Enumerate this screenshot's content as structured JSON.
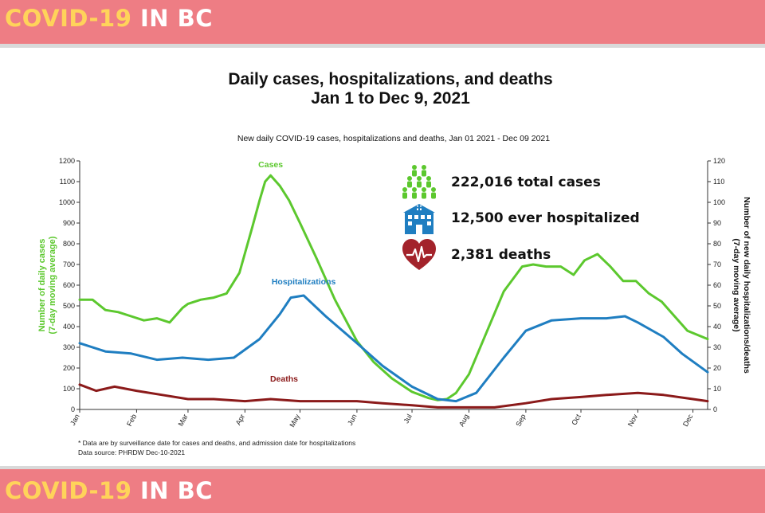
{
  "banner": {
    "part1": "COVID-19",
    "part2": "IN BC"
  },
  "title": {
    "line1": "Daily cases, hospitalizations, and deaths",
    "line2": "Jan 1 to Dec 9, 2021"
  },
  "stats": [
    {
      "icon": "people-icon",
      "text": "222,016 total cases"
    },
    {
      "icon": "hospital-icon",
      "text": "12,500 ever hospitalized"
    },
    {
      "icon": "heart-pulse-icon",
      "text": "2,381 deaths"
    }
  ],
  "footnote": {
    "line1": "* Data are by surveillance date for cases and deaths, and admission date for hospitalizations",
    "line2": "Data source: PHRDW Dec-10-2021"
  },
  "colors": {
    "banner": "#ee7d84",
    "cases": "#5cc82e",
    "hospitalizations": "#1f7ec1",
    "deaths": "#8b1a1a"
  },
  "chart_data": {
    "type": "line",
    "title": "New daily COVID-19 cases, hospitalizations and deaths, Jan 01 2021 - Dec 09 2021",
    "ylabel": "Number of daily cases (7-day moving average)",
    "ylabel2": "Number of new daily hospitalizations/deaths (7-day moving average)",
    "ylim": [
      0,
      1200
    ],
    "y2lim": [
      0,
      120
    ],
    "yticks": [
      "0",
      "100",
      "200",
      "300",
      "400",
      "500",
      "600",
      "700",
      "800",
      "900",
      "1000",
      "1100",
      "1200"
    ],
    "y2ticks": [
      "0",
      "10",
      "20",
      "30",
      "40",
      "50",
      "60",
      "70",
      "80",
      "90",
      "100",
      "110",
      "120"
    ],
    "xticks": [
      "Jan",
      "Feb",
      "Mar",
      "Apr",
      "May",
      "Jun",
      "Jul",
      "Aug",
      "Sep",
      "Oct",
      "Nov",
      "Dec"
    ],
    "xtick_dates": [
      "2021-01-01",
      "2021-02-01",
      "2021-03-01",
      "2021-04-01",
      "2021-05-01",
      "2021-06-01",
      "2021-07-01",
      "2021-08-01",
      "2021-09-01",
      "2021-10-01",
      "2021-11-01",
      "2021-12-01"
    ],
    "xlim": [
      "2021-01-01",
      "2021-12-09"
    ],
    "grid": false,
    "series": [
      {
        "name": "Cases",
        "axis": "left",
        "x": [
          "2021-01-01",
          "2021-01-08",
          "2021-01-15",
          "2021-01-22",
          "2021-01-29",
          "2021-02-05",
          "2021-02-12",
          "2021-02-19",
          "2021-02-26",
          "2021-03-01",
          "2021-03-08",
          "2021-03-15",
          "2021-03-22",
          "2021-03-29",
          "2021-04-05",
          "2021-04-09",
          "2021-04-12",
          "2021-04-15",
          "2021-04-20",
          "2021-04-25",
          "2021-05-01",
          "2021-05-10",
          "2021-05-20",
          "2021-06-01",
          "2021-06-10",
          "2021-06-20",
          "2021-07-01",
          "2021-07-10",
          "2021-07-15",
          "2021-07-20",
          "2021-07-25",
          "2021-08-01",
          "2021-08-10",
          "2021-08-20",
          "2021-08-30",
          "2021-09-05",
          "2021-09-12",
          "2021-09-20",
          "2021-09-27",
          "2021-10-03",
          "2021-10-10",
          "2021-10-17",
          "2021-10-24",
          "2021-10-31",
          "2021-11-07",
          "2021-11-14",
          "2021-11-21",
          "2021-11-28",
          "2021-12-09"
        ],
        "values": [
          530,
          530,
          480,
          470,
          450,
          430,
          440,
          420,
          490,
          510,
          530,
          540,
          560,
          660,
          880,
          1010,
          1100,
          1130,
          1080,
          1010,
          900,
          730,
          530,
          330,
          230,
          150,
          85,
          55,
          45,
          50,
          80,
          170,
          360,
          570,
          690,
          700,
          690,
          690,
          650,
          720,
          750,
          690,
          620,
          620,
          560,
          520,
          450,
          380,
          340
        ]
      },
      {
        "name": "Hospitalizations",
        "axis": "right",
        "x": [
          "2021-01-01",
          "2021-01-15",
          "2021-01-29",
          "2021-02-12",
          "2021-02-26",
          "2021-03-12",
          "2021-03-26",
          "2021-04-09",
          "2021-04-20",
          "2021-04-26",
          "2021-05-03",
          "2021-05-15",
          "2021-06-01",
          "2021-06-15",
          "2021-07-01",
          "2021-07-15",
          "2021-07-25",
          "2021-08-05",
          "2021-08-20",
          "2021-09-01",
          "2021-09-15",
          "2021-10-01",
          "2021-10-15",
          "2021-10-25",
          "2021-11-01",
          "2021-11-15",
          "2021-11-25",
          "2021-12-09"
        ],
        "values": [
          32,
          28,
          27,
          24,
          25,
          24,
          25,
          34,
          46,
          54,
          55,
          45,
          32,
          21,
          11,
          5,
          4,
          8,
          25,
          38,
          43,
          44,
          44,
          45,
          42,
          35,
          27,
          18
        ]
      },
      {
        "name": "Deaths",
        "axis": "right",
        "x": [
          "2021-01-01",
          "2021-01-10",
          "2021-01-20",
          "2021-02-01",
          "2021-02-15",
          "2021-03-01",
          "2021-03-15",
          "2021-04-01",
          "2021-04-15",
          "2021-05-01",
          "2021-05-15",
          "2021-06-01",
          "2021-06-15",
          "2021-07-01",
          "2021-07-15",
          "2021-08-01",
          "2021-08-15",
          "2021-09-01",
          "2021-09-15",
          "2021-10-01",
          "2021-10-15",
          "2021-11-01",
          "2021-11-15",
          "2021-12-01",
          "2021-12-09"
        ],
        "values": [
          12,
          9,
          11,
          9,
          7,
          5,
          5,
          4,
          5,
          4,
          4,
          4,
          3,
          2,
          1,
          1,
          1,
          3,
          5,
          6,
          7,
          8,
          7,
          5,
          4
        ]
      }
    ],
    "labels": [
      {
        "text": "Cases",
        "series": "Cases"
      },
      {
        "text": "Hospitalizations",
        "series": "Hospitalizations"
      },
      {
        "text": "Deaths",
        "series": "Deaths"
      }
    ]
  }
}
